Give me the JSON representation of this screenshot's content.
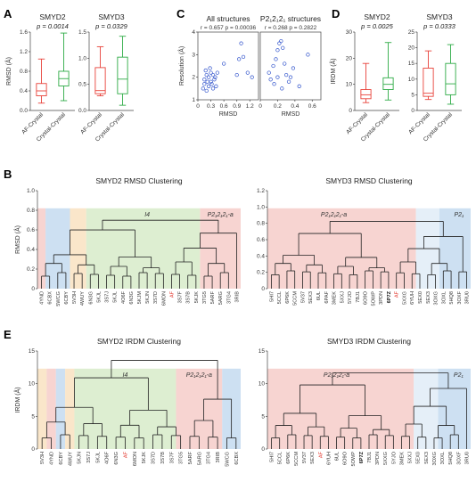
{
  "panel_labels": {
    "A": "A",
    "B": "B",
    "C": "C",
    "D": "D",
    "E": "E"
  },
  "chart_data": [
    {
      "id": "A1",
      "type": "box",
      "title": "SMYD2",
      "pvalue": "p = 0.0014",
      "ylabel": "RMSD (Å)",
      "ylim": [
        0,
        1.6
      ],
      "yticks": [
        "0.0",
        "0.4",
        "0.8",
        "1.2",
        "1.6"
      ],
      "categories": [
        "AF-Crystal",
        "Crystal-Crystal"
      ],
      "colors": [
        "#e8423a",
        "#2eab46"
      ],
      "boxes": [
        {
          "min": 0.15,
          "q1": 0.3,
          "median": 0.4,
          "q3": 0.55,
          "max": 1.05
        },
        {
          "min": 0.2,
          "q1": 0.5,
          "median": 0.65,
          "q3": 0.8,
          "max": 1.58
        }
      ]
    },
    {
      "id": "A2",
      "type": "box",
      "title": "SMYD3",
      "pvalue": "p = 0.0329",
      "ylabel": "",
      "ylim": [
        0,
        1.5
      ],
      "yticks": [
        "0.0",
        "0.5",
        "1.0",
        "1.5"
      ],
      "categories": [
        "AF-Crystal",
        "Crystal-Crystal"
      ],
      "colors": [
        "#e8423a",
        "#2eab46"
      ],
      "boxes": [
        {
          "min": 0.28,
          "q1": 0.32,
          "median": 0.38,
          "q3": 0.82,
          "max": 1.22
        },
        {
          "min": 0.1,
          "q1": 0.32,
          "median": 0.6,
          "q3": 1.02,
          "max": 1.42
        }
      ]
    },
    {
      "id": "C1",
      "type": "scatter",
      "title": "All structures",
      "annotation": "r = 0.657 p = 0.00036",
      "xlabel": "RMSD",
      "ylabel": "Resolution (Å)",
      "xlim": [
        0,
        1.4
      ],
      "ylim": [
        1,
        4
      ],
      "xticks": [
        "0",
        "0.3",
        "0.6",
        "0.9",
        "1.2"
      ],
      "yticks": [
        "1",
        "2",
        "3",
        "4"
      ],
      "color": "#3355cc",
      "points": [
        [
          0.12,
          1.5
        ],
        [
          0.15,
          1.9
        ],
        [
          0.18,
          2.3
        ],
        [
          0.2,
          2.1
        ],
        [
          0.22,
          1.8
        ],
        [
          0.25,
          2.0
        ],
        [
          0.28,
          2.4
        ],
        [
          0.3,
          2.2
        ],
        [
          0.32,
          1.7
        ],
        [
          0.35,
          2.1
        ],
        [
          0.38,
          1.9
        ],
        [
          0.4,
          2.0
        ],
        [
          0.42,
          1.6
        ],
        [
          0.2,
          1.4
        ],
        [
          0.25,
          1.6
        ],
        [
          0.3,
          1.8
        ],
        [
          0.35,
          1.5
        ],
        [
          0.15,
          1.7
        ],
        [
          0.45,
          2.2
        ],
        [
          0.9,
          2.1
        ],
        [
          0.95,
          2.8
        ],
        [
          1.0,
          3.5
        ],
        [
          1.05,
          2.9
        ],
        [
          1.15,
          2.2
        ],
        [
          1.25,
          2.0
        ],
        [
          0.6,
          2.6
        ]
      ]
    },
    {
      "id": "C2",
      "type": "scatter",
      "title": "P2₁2₁2₁ structures",
      "annotation": "r = 0.268 p = 0.2822",
      "xlabel": "RMSD",
      "ylabel": "",
      "xlim": [
        0,
        0.7
      ],
      "ylim": [
        1,
        4
      ],
      "xticks": [
        "0",
        "0.2",
        "0.4",
        "0.6"
      ],
      "yticks": [],
      "color": "#3355cc",
      "points": [
        [
          0.1,
          2.2
        ],
        [
          0.12,
          1.9
        ],
        [
          0.15,
          2.5
        ],
        [
          0.18,
          2.8
        ],
        [
          0.2,
          3.2
        ],
        [
          0.22,
          3.5
        ],
        [
          0.24,
          3.6
        ],
        [
          0.26,
          3.3
        ],
        [
          0.28,
          2.6
        ],
        [
          0.3,
          2.1
        ],
        [
          0.33,
          1.8
        ],
        [
          0.35,
          2.0
        ],
        [
          0.38,
          2.4
        ],
        [
          0.16,
          1.7
        ],
        [
          0.25,
          1.5
        ],
        [
          0.45,
          1.6
        ],
        [
          0.55,
          3.0
        ],
        [
          0.2,
          2.0
        ]
      ]
    },
    {
      "id": "D1",
      "type": "box",
      "title": "SMYD2",
      "pvalue": "p = 0.0025",
      "ylabel": "IRDM (Å)",
      "ylim": [
        0,
        30
      ],
      "yticks": [
        "0",
        "10",
        "20",
        "30"
      ],
      "categories": [
        "AF-Crystal",
        "Crystal-Crystal"
      ],
      "colors": [
        "#e8423a",
        "#2eab46"
      ],
      "boxes": [
        {
          "min": 3,
          "q1": 4.5,
          "median": 6,
          "q3": 8,
          "max": 18
        },
        {
          "min": 4,
          "q1": 8,
          "median": 10,
          "q3": 12.5,
          "max": 26
        }
      ]
    },
    {
      "id": "D2",
      "type": "box",
      "title": "SMYD3",
      "pvalue": "p = 0.0333",
      "ylabel": "",
      "ylim": [
        0,
        25
      ],
      "yticks": [
        "0",
        "5",
        "10",
        "15",
        "20",
        "25"
      ],
      "categories": [
        "AF-Crystal",
        "Crystal-Crystal"
      ],
      "colors": [
        "#e8423a",
        "#2eab46"
      ],
      "boxes": [
        {
          "min": 3.5,
          "q1": 4.5,
          "median": 5.5,
          "q3": 13.5,
          "max": 19
        },
        {
          "min": 2,
          "q1": 5,
          "median": 8.5,
          "q3": 15,
          "max": 21
        }
      ]
    },
    {
      "id": "B1",
      "type": "dendrogram",
      "title": "SMYD2 RMSD Clustering",
      "ylabel": "RMSD (Å)",
      "ylim": [
        0,
        1.0
      ],
      "yticks": [
        "0",
        "0.2",
        "0.4",
        "0.6",
        "0.8",
        "1.0"
      ],
      "leaves": [
        "4YND",
        "6CBX",
        "5WCG",
        "6CBY",
        "5V3H",
        "4WUY",
        "6N3G",
        "5KJL",
        "3S7J",
        "5KJL",
        "4O6F",
        "6N3G",
        "5KJM",
        "5KJN",
        "3S7D",
        "6MON",
        "AF",
        "3S7F",
        "3S7B",
        "5KJK",
        "3TG5",
        "5ARF",
        "5ARG",
        "3TG4",
        "3RIB"
      ],
      "leaf_styles": [
        "n",
        "n",
        "n",
        "n",
        "n",
        "n",
        "n",
        "n",
        "n",
        "n",
        "n",
        "n",
        "n",
        "n",
        "n",
        "n",
        "r",
        "n",
        "n",
        "n",
        "n",
        "n",
        "n",
        "n",
        "n"
      ],
      "bands": [
        {
          "from": 0,
          "to": 0,
          "color": "#f4c6c2"
        },
        {
          "from": 1,
          "to": 3,
          "color": "#bcd5ee"
        },
        {
          "from": 4,
          "to": 5,
          "color": "#f8ddb8"
        },
        {
          "from": 6,
          "to": 19,
          "color": "#d2e8c2"
        },
        {
          "from": 20,
          "to": 24,
          "color": "#f4c6c2"
        }
      ],
      "group_labels": [
        {
          "text": "I4",
          "at": 13
        },
        {
          "text": "P2₁2₁2₁-a",
          "at": 22
        }
      ],
      "leaf_heights": [
        0.0,
        0.0,
        0.0,
        0.0,
        0.0,
        0.0,
        0.0,
        0.0,
        0.0,
        0.0,
        0.0,
        0.0,
        0.0,
        0.0,
        0.0,
        0.0,
        0.0,
        0.0,
        0.0,
        0.0,
        0.0,
        0.0,
        0.0,
        0.0,
        0.0
      ],
      "merges": [
        [
          7,
          8,
          0.2
        ],
        [
          9,
          10,
          0.22
        ],
        [
          13,
          14,
          0.15
        ],
        [
          15,
          16,
          0.18
        ],
        [
          17,
          18,
          0.16
        ],
        [
          11,
          12,
          0.28
        ],
        [
          20,
          21,
          0.35
        ],
        [
          22,
          23,
          0.3
        ],
        [
          2,
          3,
          0.72
        ],
        [
          1,
          2,
          0.82
        ]
      ]
    },
    {
      "id": "B2",
      "type": "dendrogram",
      "title": "SMYD3 RMSD Clustering",
      "ylabel": "",
      "ylim": [
        0,
        1.2
      ],
      "yticks": [
        "0",
        "0.2",
        "0.4",
        "0.6",
        "0.8",
        "1.0",
        "1.2"
      ],
      "leaves": [
        "5HI7",
        "5CCL",
        "6P6K",
        "5CCM",
        "5V37",
        "5EX3",
        "6UL",
        "6PAF",
        "3MEK",
        "5XXJ",
        "5YJO",
        "7BJ1",
        "6O9O",
        "5OWP",
        "3PDN",
        "6P7Z",
        "AF",
        "5XXG",
        "6YUH",
        "5EX0",
        "5EX3",
        "3OXG",
        "3OXL",
        "5HQ8",
        "3OXF",
        "3RU0"
      ],
      "leaf_styles": [
        "n",
        "n",
        "n",
        "n",
        "n",
        "n",
        "n",
        "n",
        "n",
        "n",
        "n",
        "n",
        "n",
        "n",
        "n",
        "b",
        "r",
        "n",
        "n",
        "n",
        "n",
        "n",
        "n",
        "n",
        "n",
        "n"
      ],
      "bands": [
        {
          "from": 0,
          "to": 18,
          "color": "#f4c6c2"
        },
        {
          "from": 19,
          "to": 21,
          "color": "#dce9f5"
        },
        {
          "from": 22,
          "to": 25,
          "color": "#bcd5ee"
        }
      ],
      "group_labels": [
        {
          "text": "P2₁2₁2₁-a",
          "at": 8
        },
        {
          "text": "P2₁",
          "at": 24
        }
      ]
    },
    {
      "id": "E1",
      "type": "dendrogram",
      "title": "SMYD2 IRDM Clustering",
      "ylabel": "IRDM (Å)",
      "ylim": [
        0,
        15
      ],
      "yticks": [
        "0",
        "5",
        "10",
        "15"
      ],
      "leaves": [
        "5V3H",
        "4YND",
        "6CBY",
        "4WUY",
        "5KJN",
        "3S7J",
        "5KJL",
        "4O6F",
        "6N3G",
        "AF",
        "6MON",
        "5KJK",
        "3S7D",
        "3S7B",
        "3S7F",
        "3TG5",
        "5ARF",
        "5ARG",
        "3TG4",
        "3RIB",
        "5WCG",
        "6CBX"
      ],
      "leaf_styles": [
        "n",
        "n",
        "n",
        "n",
        "n",
        "n",
        "n",
        "n",
        "n",
        "r",
        "n",
        "n",
        "n",
        "n",
        "n",
        "n",
        "n",
        "n",
        "n",
        "n",
        "n",
        "n"
      ],
      "bands": [
        {
          "from": 0,
          "to": 0,
          "color": "#f8ddb8"
        },
        {
          "from": 1,
          "to": 1,
          "color": "#f4c6c2"
        },
        {
          "from": 2,
          "to": 2,
          "color": "#bcd5ee"
        },
        {
          "from": 3,
          "to": 3,
          "color": "#f8ddb8"
        },
        {
          "from": 4,
          "to": 14,
          "color": "#d2e8c2"
        },
        {
          "from": 15,
          "to": 19,
          "color": "#f4c6c2"
        },
        {
          "from": 20,
          "to": 21,
          "color": "#bcd5ee"
        }
      ],
      "group_labels": [
        {
          "text": "I4",
          "at": 9
        },
        {
          "text": "P2₁2₁2₁-a",
          "at": 17
        }
      ]
    },
    {
      "id": "E2",
      "type": "dendrogram",
      "title": "SMYD3 IRDM Clustering",
      "ylabel": "",
      "ylim": [
        0,
        15
      ],
      "yticks": [
        "0",
        "5",
        "10",
        "15"
      ],
      "leaves": [
        "5HI7",
        "5CCL",
        "6P6K",
        "5CCM",
        "5V37",
        "5EX3",
        "AF",
        "6YUH",
        "6UL",
        "6O9O",
        "5OWP",
        "6P7Z",
        "7BJ1",
        "3PDN",
        "5XXG",
        "5YJO",
        "3MEK",
        "5XXJ",
        "5EX0",
        "5EX3",
        "3OXG",
        "3OXL",
        "5HQ8",
        "3OXF",
        "3RU0"
      ],
      "leaf_styles": [
        "n",
        "n",
        "n",
        "n",
        "n",
        "n",
        "r",
        "n",
        "n",
        "n",
        "n",
        "b",
        "n",
        "n",
        "n",
        "n",
        "n",
        "n",
        "n",
        "n",
        "n",
        "n",
        "n",
        "n",
        "n"
      ],
      "bands": [
        {
          "from": 0,
          "to": 17,
          "color": "#f4c6c2"
        },
        {
          "from": 18,
          "to": 20,
          "color": "#dce9f5"
        },
        {
          "from": 21,
          "to": 24,
          "color": "#bcd5ee"
        }
      ],
      "group_labels": [
        {
          "text": "P2₁2₁2₁-a",
          "at": 8
        },
        {
          "text": "P2₁",
          "at": 23
        }
      ]
    }
  ]
}
